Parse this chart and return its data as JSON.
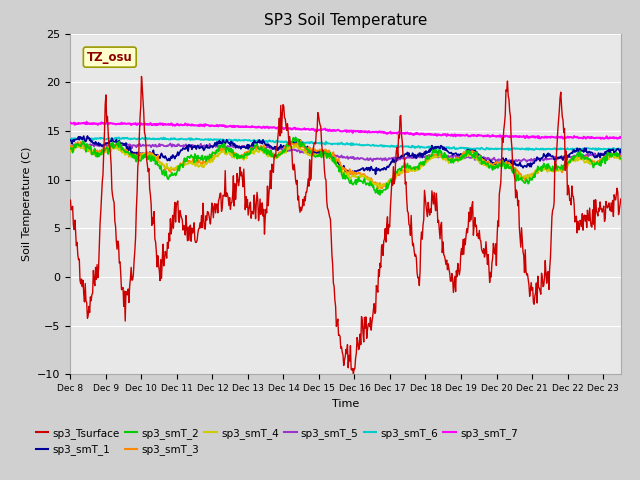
{
  "title": "SP3 Soil Temperature",
  "xlabel": "Time",
  "ylabel": "Soil Temperature (C)",
  "ylim": [
    -10,
    25
  ],
  "xlim": [
    0,
    15.5
  ],
  "xtick_labels": [
    "Dec 8",
    "Dec 9",
    "Dec 10",
    "Dec 11",
    "Dec 12",
    "Dec 13",
    "Dec 14",
    "Dec 15",
    "Dec 16",
    "Dec 17",
    "Dec 18",
    "Dec 19",
    "Dec 20",
    "Dec 21",
    "Dec 22",
    "Dec 23"
  ],
  "fig_bg": "#d0d0d0",
  "plot_bg": "#e8e8e8",
  "grid_color": "#ffffff",
  "legend_entries": [
    "sp3_Tsurface",
    "sp3_smT_1",
    "sp3_smT_2",
    "sp3_smT_3",
    "sp3_smT_4",
    "sp3_smT_5",
    "sp3_smT_6",
    "sp3_smT_7"
  ],
  "legend_colors": [
    "#cc0000",
    "#000099",
    "#00cc00",
    "#ff8800",
    "#cccc00",
    "#9933cc",
    "#00cccc",
    "#ff00ff"
  ],
  "tz_label": "TZ_osu",
  "tz_color": "#8b0000",
  "tz_bg": "#ffffcc",
  "tz_border": "#999900"
}
